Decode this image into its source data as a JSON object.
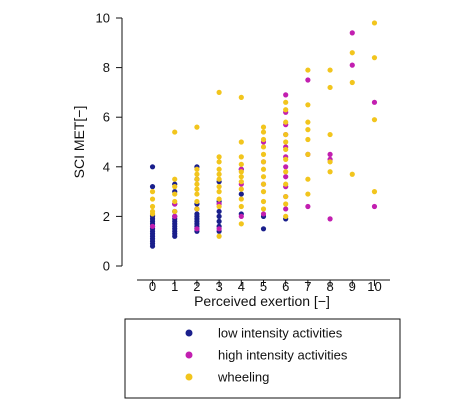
{
  "chart_data": {
    "type": "scatter",
    "xlabel": "Perceived exertion [−]",
    "ylabel": "SCI MET[−]",
    "xlim": [
      -0.7,
      10.7
    ],
    "ylim": [
      0,
      10
    ],
    "x_ticks": [
      "0",
      "1",
      "2",
      "3",
      "4",
      "5",
      "6",
      "7",
      "8",
      "9",
      "10"
    ],
    "y_ticks": [
      "0",
      "2",
      "4",
      "6",
      "8",
      "10"
    ],
    "grid": false,
    "legend_position": "below",
    "series": [
      {
        "name": "low intensity activities",
        "color": "#1a1f8c",
        "points": [
          [
            0,
            0.8
          ],
          [
            0,
            0.9
          ],
          [
            0,
            1.0
          ],
          [
            0,
            1.1
          ],
          [
            0,
            1.2
          ],
          [
            0,
            1.3
          ],
          [
            0,
            1.4
          ],
          [
            0,
            1.5
          ],
          [
            0,
            1.6
          ],
          [
            0,
            1.7
          ],
          [
            0,
            1.8
          ],
          [
            0,
            1.9
          ],
          [
            0,
            2.0
          ],
          [
            0,
            2.05
          ],
          [
            0,
            3.2
          ],
          [
            0,
            4.0
          ],
          [
            1,
            1.2
          ],
          [
            1,
            1.3
          ],
          [
            1,
            1.4
          ],
          [
            1,
            1.5
          ],
          [
            1,
            1.6
          ],
          [
            1,
            1.7
          ],
          [
            1,
            1.8
          ],
          [
            1,
            1.9
          ],
          [
            1,
            2.0
          ],
          [
            1,
            2.2
          ],
          [
            1,
            2.5
          ],
          [
            1,
            3.0
          ],
          [
            1,
            3.3
          ],
          [
            2,
            1.4
          ],
          [
            2,
            1.5
          ],
          [
            2,
            1.6
          ],
          [
            2,
            1.7
          ],
          [
            2,
            1.8
          ],
          [
            2,
            1.9
          ],
          [
            2,
            2.0
          ],
          [
            2,
            2.1
          ],
          [
            2,
            2.3
          ],
          [
            2,
            2.5
          ],
          [
            2,
            3.5
          ],
          [
            2,
            4.0
          ],
          [
            3,
            1.4
          ],
          [
            3,
            1.6
          ],
          [
            3,
            1.8
          ],
          [
            3,
            2.0
          ],
          [
            3,
            2.2
          ],
          [
            3,
            2.6
          ],
          [
            3,
            3.4
          ],
          [
            4,
            2.1
          ],
          [
            4,
            2.9
          ],
          [
            4,
            3.9
          ],
          [
            5,
            1.5
          ],
          [
            5,
            2.0
          ],
          [
            6,
            1.9
          ]
        ]
      },
      {
        "name": "high intensity activities",
        "color": "#c21fb0",
        "points": [
          [
            0,
            1.6
          ],
          [
            1,
            2.0
          ],
          [
            1,
            2.5
          ],
          [
            2,
            1.5
          ],
          [
            2,
            2.3
          ],
          [
            3,
            1.5
          ],
          [
            3,
            2.5
          ],
          [
            4,
            2.0
          ],
          [
            4,
            3.3
          ],
          [
            4,
            3.9
          ],
          [
            5,
            2.1
          ],
          [
            5,
            3.3
          ],
          [
            5,
            4.2
          ],
          [
            5,
            5.0
          ],
          [
            6,
            2.3
          ],
          [
            6,
            2.8
          ],
          [
            6,
            3.2
          ],
          [
            6,
            3.6
          ],
          [
            6,
            4.0
          ],
          [
            6,
            4.4
          ],
          [
            6,
            4.8
          ],
          [
            6,
            5.3
          ],
          [
            6,
            5.7
          ],
          [
            6,
            6.2
          ],
          [
            6,
            6.9
          ],
          [
            7,
            2.4
          ],
          [
            7,
            4.5
          ],
          [
            7,
            7.5
          ],
          [
            8,
            1.9
          ],
          [
            8,
            4.3
          ],
          [
            8,
            4.5
          ],
          [
            9,
            8.1
          ],
          [
            9,
            9.4
          ],
          [
            10,
            2.4
          ],
          [
            10,
            6.6
          ]
        ]
      },
      {
        "name": "wheeling",
        "color": "#f2c51d",
        "points": [
          [
            0,
            2.1
          ],
          [
            0,
            2.2
          ],
          [
            0,
            2.4
          ],
          [
            0,
            2.7
          ],
          [
            0,
            3.0
          ],
          [
            1,
            2.2
          ],
          [
            1,
            2.6
          ],
          [
            1,
            2.9
          ],
          [
            1,
            3.2
          ],
          [
            1,
            3.5
          ],
          [
            1,
            5.4
          ],
          [
            2,
            2.3
          ],
          [
            2,
            2.6
          ],
          [
            2,
            2.9
          ],
          [
            2,
            3.1
          ],
          [
            2,
            3.3
          ],
          [
            2,
            3.5
          ],
          [
            2,
            3.7
          ],
          [
            2,
            3.9
          ],
          [
            2,
            5.6
          ],
          [
            3,
            1.2
          ],
          [
            3,
            2.4
          ],
          [
            3,
            2.7
          ],
          [
            3,
            3.0
          ],
          [
            3,
            3.2
          ],
          [
            3,
            3.5
          ],
          [
            3,
            3.7
          ],
          [
            3,
            3.9
          ],
          [
            3,
            4.2
          ],
          [
            3,
            4.4
          ],
          [
            3,
            7.0
          ],
          [
            4,
            1.7
          ],
          [
            4,
            2.4
          ],
          [
            4,
            2.7
          ],
          [
            4,
            3.1
          ],
          [
            4,
            3.4
          ],
          [
            4,
            3.6
          ],
          [
            4,
            3.8
          ],
          [
            4,
            4.1
          ],
          [
            4,
            4.4
          ],
          [
            4,
            5.0
          ],
          [
            4,
            6.8
          ],
          [
            5,
            2.3
          ],
          [
            5,
            2.6
          ],
          [
            5,
            3.0
          ],
          [
            5,
            3.3
          ],
          [
            5,
            3.6
          ],
          [
            5,
            3.9
          ],
          [
            5,
            4.2
          ],
          [
            5,
            4.5
          ],
          [
            5,
            4.8
          ],
          [
            5,
            5.1
          ],
          [
            5,
            5.4
          ],
          [
            5,
            5.6
          ],
          [
            6,
            2.0
          ],
          [
            6,
            2.5
          ],
          [
            6,
            2.8
          ],
          [
            6,
            3.3
          ],
          [
            6,
            3.8
          ],
          [
            6,
            4.3
          ],
          [
            6,
            4.7
          ],
          [
            6,
            5.0
          ],
          [
            6,
            5.3
          ],
          [
            6,
            5.8
          ],
          [
            6,
            6.3
          ],
          [
            6,
            6.6
          ],
          [
            7,
            2.9
          ],
          [
            7,
            3.5
          ],
          [
            7,
            4.5
          ],
          [
            7,
            5.1
          ],
          [
            7,
            5.5
          ],
          [
            7,
            5.8
          ],
          [
            7,
            6.5
          ],
          [
            7,
            7.9
          ],
          [
            8,
            3.8
          ],
          [
            8,
            4.2
          ],
          [
            8,
            5.3
          ],
          [
            8,
            7.2
          ],
          [
            8,
            7.9
          ],
          [
            9,
            3.7
          ],
          [
            9,
            7.4
          ],
          [
            9,
            8.6
          ],
          [
            10,
            3.0
          ],
          [
            10,
            5.9
          ],
          [
            10,
            8.4
          ],
          [
            10,
            9.8
          ]
        ]
      }
    ]
  }
}
